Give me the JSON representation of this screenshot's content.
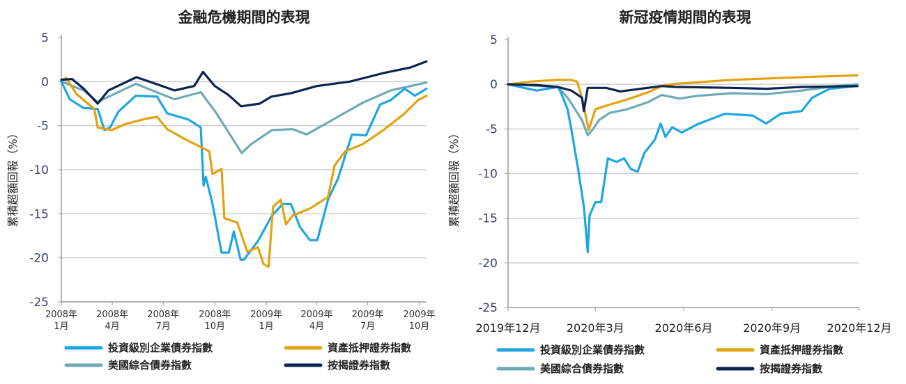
{
  "chart_data": [
    {
      "type": "line",
      "title": "金融危機期間的表現",
      "ylabel": "累積超額回報（%）",
      "xlabel": "",
      "xlim": [
        "2008-01-01",
        "2009-10-14"
      ],
      "ylim": [
        -25,
        5
      ],
      "yticks": [
        "5",
        "0",
        "-5",
        "-10",
        "-15",
        "-20",
        "-25"
      ],
      "grid": true,
      "legend": "bottom",
      "xticks": [
        {
          "value": "2008-01-01",
          "label": [
            "2008年",
            "1月"
          ]
        },
        {
          "value": "2008-04-01",
          "label": [
            "2008年",
            "4月"
          ]
        },
        {
          "value": "2008-07-01",
          "label": [
            "2008年",
            "7月"
          ]
        },
        {
          "value": "2008-10-01",
          "label": [
            "2008年",
            "10月"
          ]
        },
        {
          "value": "2009-01-01",
          "label": [
            "2009年",
            "1月"
          ]
        },
        {
          "value": "2009-04-01",
          "label": [
            "2009年",
            "4月"
          ]
        },
        {
          "value": "2009-07-01",
          "label": [
            "2009年",
            "7月"
          ]
        },
        {
          "value": "2009-10-01",
          "label": [
            "2009年",
            "10月"
          ]
        }
      ],
      "series": [
        {
          "name": "投資級別企業債券指數",
          "color": "#1ea6e0",
          "points": [
            [
              "2008-01-01",
              0
            ],
            [
              "2008-01-16",
              -2
            ],
            [
              "2008-02-10",
              -3
            ],
            [
              "2008-03-06",
              -3.1
            ],
            [
              "2008-03-18",
              -5.5
            ],
            [
              "2008-03-28",
              -5.2
            ],
            [
              "2008-04-12",
              -3.4
            ],
            [
              "2008-05-13",
              -1.6
            ],
            [
              "2008-06-20",
              -1.7
            ],
            [
              "2008-07-08",
              -3.6
            ],
            [
              "2008-08-15",
              -4.3
            ],
            [
              "2008-09-06",
              -5.2
            ],
            [
              "2008-09-11",
              -11.8
            ],
            [
              "2008-09-15",
              -10.8
            ],
            [
              "2008-09-27",
              -13.9
            ],
            [
              "2008-10-13",
              -19.4
            ],
            [
              "2008-10-26",
              -19.4
            ],
            [
              "2008-11-04",
              -17
            ],
            [
              "2008-11-16",
              -20.2
            ],
            [
              "2008-11-22",
              -20.2
            ],
            [
              "2008-12-17",
              -18.1
            ],
            [
              "2009-01-11",
              -15.2
            ],
            [
              "2009-01-30",
              -13.9
            ],
            [
              "2009-02-14",
              -13.9
            ],
            [
              "2009-03-02",
              -16.5
            ],
            [
              "2009-03-20",
              -18
            ],
            [
              "2009-04-02",
              -18
            ],
            [
              "2009-04-21",
              -13.4
            ],
            [
              "2009-05-09",
              -11
            ],
            [
              "2009-06-03",
              -6
            ],
            [
              "2009-06-28",
              -6.1
            ],
            [
              "2009-07-23",
              -2.6
            ],
            [
              "2009-08-11",
              -2.1
            ],
            [
              "2009-09-05",
              -0.8
            ],
            [
              "2009-09-23",
              -1.6
            ],
            [
              "2009-10-14",
              -0.8
            ]
          ]
        },
        {
          "name": "資產抵押證券指數",
          "color": "#e3a20f",
          "points": [
            [
              "2008-01-01",
              0.2
            ],
            [
              "2008-01-10",
              0.4
            ],
            [
              "2008-01-28",
              -1.4
            ],
            [
              "2008-02-29",
              -3.1
            ],
            [
              "2008-03-06",
              -5.2
            ],
            [
              "2008-03-31",
              -5.5
            ],
            [
              "2008-04-25",
              -4.8
            ],
            [
              "2008-06-01",
              -4.2
            ],
            [
              "2008-06-20",
              -4.0
            ],
            [
              "2008-07-08",
              -5.4
            ],
            [
              "2008-08-08",
              -6.5
            ],
            [
              "2008-09-02",
              -7.3
            ],
            [
              "2008-09-21",
              -7.9
            ],
            [
              "2008-09-27",
              -10.5
            ],
            [
              "2008-10-13",
              -9.9
            ],
            [
              "2008-10-18",
              -15.5
            ],
            [
              "2008-11-10",
              -16
            ],
            [
              "2008-11-28",
              -19.3
            ],
            [
              "2008-12-17",
              -18.8
            ],
            [
              "2008-12-27",
              -20.7
            ],
            [
              "2009-01-05",
              -21
            ],
            [
              "2009-01-13",
              -14.2
            ],
            [
              "2009-01-27",
              -13.4
            ],
            [
              "2009-02-05",
              -16.2
            ],
            [
              "2009-02-17",
              -15.2
            ],
            [
              "2009-03-20",
              -14.4
            ],
            [
              "2009-04-21",
              -13.1
            ],
            [
              "2009-05-03",
              -9.5
            ],
            [
              "2009-05-22",
              -7.9
            ],
            [
              "2009-06-22",
              -7.1
            ],
            [
              "2009-07-29",
              -5.5
            ],
            [
              "2009-09-05",
              -3.6
            ],
            [
              "2009-09-29",
              -2.1
            ],
            [
              "2009-10-14",
              -1.6
            ]
          ]
        },
        {
          "name": "美國綜合債券指數",
          "color": "#6eaab5",
          "points": [
            [
              "2008-01-01",
              0
            ],
            [
              "2008-02-10",
              -1
            ],
            [
              "2008-03-06",
              -2.3
            ],
            [
              "2008-05-13",
              -0.25
            ],
            [
              "2008-07-21",
              -2
            ],
            [
              "2008-09-06",
              -1.2
            ],
            [
              "2008-10-03",
              -3.5
            ],
            [
              "2008-10-28",
              -6
            ],
            [
              "2008-11-18",
              -8.1
            ],
            [
              "2008-12-05",
              -7.1
            ],
            [
              "2009-01-11",
              -5.5
            ],
            [
              "2009-02-17",
              -5.4
            ],
            [
              "2009-03-14",
              -6.0
            ],
            [
              "2009-05-03",
              -4.2
            ],
            [
              "2009-06-22",
              -2.4
            ],
            [
              "2009-08-11",
              -1.0
            ],
            [
              "2009-10-14",
              -0.1
            ]
          ]
        },
        {
          "name": "按揭證券指數",
          "color": "#0b2350",
          "points": [
            [
              "2008-01-01",
              0.2
            ],
            [
              "2008-01-20",
              0.3
            ],
            [
              "2008-02-10",
              -0.8
            ],
            [
              "2008-03-06",
              -2.5
            ],
            [
              "2008-03-25",
              -1.0
            ],
            [
              "2008-05-14",
              0.5
            ],
            [
              "2008-06-20",
              -0.3
            ],
            [
              "2008-07-21",
              -1.0
            ],
            [
              "2008-08-25",
              -0.5
            ],
            [
              "2008-09-10",
              1.1
            ],
            [
              "2008-10-01",
              -0.5
            ],
            [
              "2008-10-25",
              -1.5
            ],
            [
              "2008-11-17",
              -2.8
            ],
            [
              "2008-12-20",
              -2.5
            ],
            [
              "2009-01-10",
              -1.7
            ],
            [
              "2009-02-15",
              -1.3
            ],
            [
              "2009-04-01",
              -0.5
            ],
            [
              "2009-05-30",
              0.0
            ],
            [
              "2009-07-31",
              1.0
            ],
            [
              "2009-09-15",
              1.6
            ],
            [
              "2009-10-14",
              2.3
            ]
          ]
        }
      ]
    },
    {
      "type": "line",
      "title": "新冠疫情期間的表現",
      "ylabel": "累積超額回報（%）",
      "xlabel": "",
      "xlim": [
        "2019-12-01",
        "2020-12-01"
      ],
      "ylim": [
        -25,
        5
      ],
      "yticks": [
        "5",
        "0",
        "-5",
        "-10",
        "-15",
        "-20",
        "-25"
      ],
      "grid": true,
      "legend": "bottom",
      "xticks": [
        {
          "value": "2019-12-01",
          "label": [
            "2019年12月"
          ]
        },
        {
          "value": "2020-03-01",
          "label": [
            "2020年3月"
          ]
        },
        {
          "value": "2020-06-01",
          "label": [
            "2020年6月"
          ]
        },
        {
          "value": "2020-09-01",
          "label": [
            "2020年9月"
          ]
        },
        {
          "value": "2020-12-01",
          "label": [
            "2020年12月"
          ]
        }
      ],
      "series": [
        {
          "name": "投資級別企業債券指數",
          "color": "#1ea6e0",
          "points": [
            [
              "2019-12-01",
              0
            ],
            [
              "2019-12-13",
              -0.3
            ],
            [
              "2019-12-31",
              -0.7
            ],
            [
              "2020-01-22",
              -0.3
            ],
            [
              "2020-01-25",
              -0.9
            ],
            [
              "2020-02-01",
              -2.8
            ],
            [
              "2020-02-05",
              -5.1
            ],
            [
              "2020-02-12",
              -9.5
            ],
            [
              "2020-02-18",
              -13.7
            ],
            [
              "2020-02-22",
              -18.8
            ],
            [
              "2020-02-24",
              -14.7
            ],
            [
              "2020-03-01",
              -13.2
            ],
            [
              "2020-03-07",
              -13.2
            ],
            [
              "2020-03-14",
              -8.3
            ],
            [
              "2020-03-23",
              -8.7
            ],
            [
              "2020-03-31",
              -8.3
            ],
            [
              "2020-04-07",
              -9.5
            ],
            [
              "2020-04-14",
              -9.8
            ],
            [
              "2020-04-21",
              -7.7
            ],
            [
              "2020-05-02",
              -6.2
            ],
            [
              "2020-05-08",
              -4.4
            ],
            [
              "2020-05-13",
              -5.9
            ],
            [
              "2020-05-20",
              -4.8
            ],
            [
              "2020-05-30",
              -5.4
            ],
            [
              "2020-06-15",
              -4.5
            ],
            [
              "2020-07-14",
              -3.3
            ],
            [
              "2020-08-12",
              -3.5
            ],
            [
              "2020-08-26",
              -4.4
            ],
            [
              "2020-09-10",
              -3.3
            ],
            [
              "2020-10-02",
              -3
            ],
            [
              "2020-10-13",
              -1.5
            ],
            [
              "2020-10-31",
              -0.5
            ],
            [
              "2020-11-29",
              -0.2
            ]
          ]
        },
        {
          "name": "資產抵押證券指數",
          "color": "#e3a20f",
          "points": [
            [
              "2019-12-01",
              0
            ],
            [
              "2019-12-24",
              0.3
            ],
            [
              "2020-01-22",
              0.5
            ],
            [
              "2020-02-05",
              0.5
            ],
            [
              "2020-02-11",
              0.3
            ],
            [
              "2020-02-16",
              -1.5
            ],
            [
              "2020-02-23",
              -5.1
            ],
            [
              "2020-03-01",
              -2.8
            ],
            [
              "2020-03-12",
              -2.4
            ],
            [
              "2020-04-03",
              -1.7
            ],
            [
              "2020-04-25",
              -0.9
            ],
            [
              "2020-05-09",
              -0.2
            ],
            [
              "2020-05-24",
              0.05
            ],
            [
              "2020-07-21",
              0.5
            ],
            [
              "2020-10-02",
              0.8
            ],
            [
              "2020-11-29",
              1.0
            ]
          ]
        },
        {
          "name": "美國綜合債券指數",
          "color": "#6eaab5",
          "points": [
            [
              "2019-12-01",
              0
            ],
            [
              "2020-01-22",
              -0.3
            ],
            [
              "2020-02-01",
              -1.5
            ],
            [
              "2020-02-16",
              -4
            ],
            [
              "2020-02-22",
              -5.7
            ],
            [
              "2020-02-27",
              -5.1
            ],
            [
              "2020-03-05",
              -4
            ],
            [
              "2020-03-16",
              -3.2
            ],
            [
              "2020-04-03",
              -2.8
            ],
            [
              "2020-04-25",
              -2.0
            ],
            [
              "2020-05-09",
              -1.2
            ],
            [
              "2020-05-28",
              -1.6
            ],
            [
              "2020-06-15",
              -1.3
            ],
            [
              "2020-07-21",
              -1.0
            ],
            [
              "2020-08-26",
              -1.1
            ],
            [
              "2020-10-02",
              -0.7
            ],
            [
              "2020-11-07",
              -0.2
            ],
            [
              "2020-11-29",
              0.0
            ]
          ]
        },
        {
          "name": "按揭證券指數",
          "color": "#0b2350",
          "points": [
            [
              "2019-12-01",
              0
            ],
            [
              "2019-12-31",
              -0.1
            ],
            [
              "2020-01-22",
              -0.3
            ],
            [
              "2020-02-05",
              -0.7
            ],
            [
              "2020-02-16",
              -1.5
            ],
            [
              "2020-02-18",
              -3.0
            ],
            [
              "2020-02-22",
              -0.4
            ],
            [
              "2020-03-12",
              -0.4
            ],
            [
              "2020-03-27",
              -0.8
            ],
            [
              "2020-05-09",
              -0.2
            ],
            [
              "2020-05-24",
              -0.3
            ],
            [
              "2020-07-21",
              -0.4
            ],
            [
              "2020-08-26",
              -0.5
            ],
            [
              "2020-10-02",
              -0.3
            ],
            [
              "2020-11-29",
              -0.2
            ]
          ]
        }
      ]
    }
  ]
}
